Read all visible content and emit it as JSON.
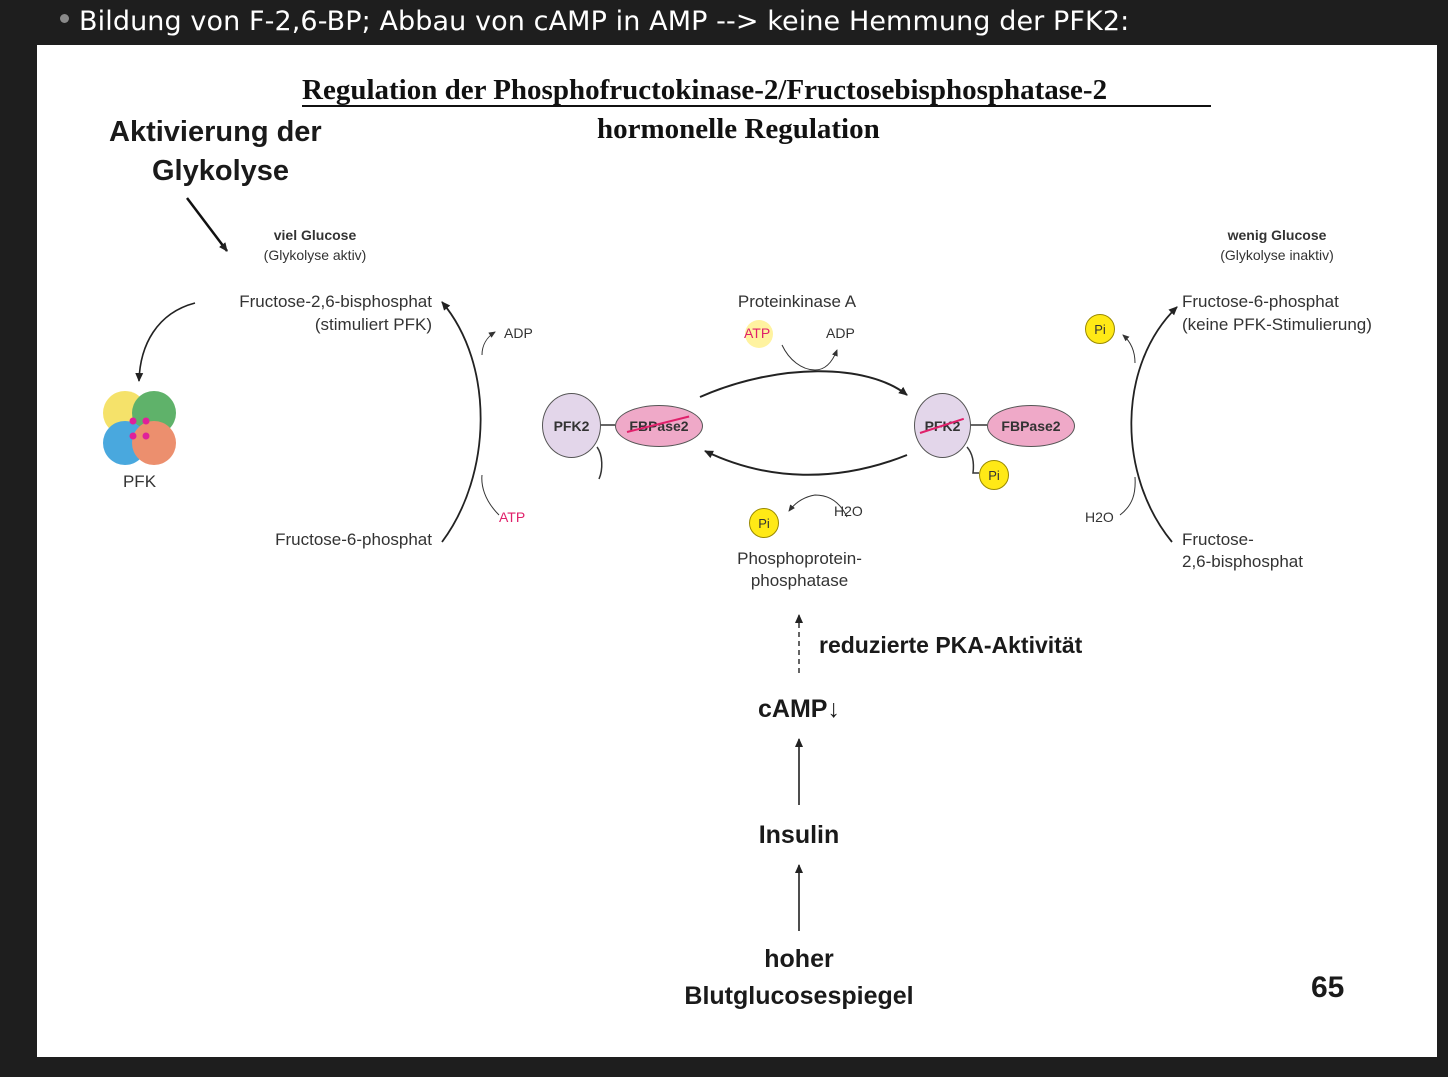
{
  "bullet": {
    "text": "Bildung von F-2,6-BP; Abbau von cAMP in AMP --> keine Hemmung der PFK2:"
  },
  "slide": {
    "title": "Regulation der Phosphofructokinase-2/Fructosebisphosphatase-2",
    "subtitle": "hormonelle Regulation",
    "activation_line1": "Aktivierung der",
    "activation_line2": "Glykolyse",
    "page_number": "65"
  },
  "left": {
    "condition": "viel Glucose",
    "condition_note": "(Glykolyse aktiv)",
    "product_line1": "Fructose-2,6-bisphosphat",
    "product_line2": "(stimuliert PFK)",
    "substrate": "Fructose-6-phosphat",
    "adp": "ADP",
    "atp": "ATP",
    "pfk_label": "PFK"
  },
  "center": {
    "enzyme_top": "Proteinkinase A",
    "atp": "ATP",
    "adp": "ADP",
    "pfk2": "PFK2",
    "fbpase2": "FBPase2",
    "pi": "Pi",
    "water": "H2O",
    "phosphatase_line1": "Phosphoprotein-",
    "phosphatase_line2": "phosphatase"
  },
  "right": {
    "condition": "wenig Glucose",
    "condition_note": "(Glykolyse inaktiv)",
    "product_line1": "Fructose-6-phosphat",
    "product_line2": "(keine PFK-Stimulierung)",
    "substrate_line1": "Fructose-",
    "substrate_line2": "2,6-bisphosphat",
    "water": "H2O",
    "pi": "Pi"
  },
  "cascade": {
    "pka": "reduzierte PKA-Aktivität",
    "camp": "cAMP↓",
    "insulin": "Insulin",
    "glucose_line1": "hoher",
    "glucose_line2": "Blutglucosespiegel"
  },
  "colors": {
    "pfk2_fill": "#e3d6ea",
    "fbpase2_fill": "#efa9c8",
    "pi_fill": "#ffe916",
    "atp_text": "#e0206a",
    "strike": "#e0206a"
  }
}
